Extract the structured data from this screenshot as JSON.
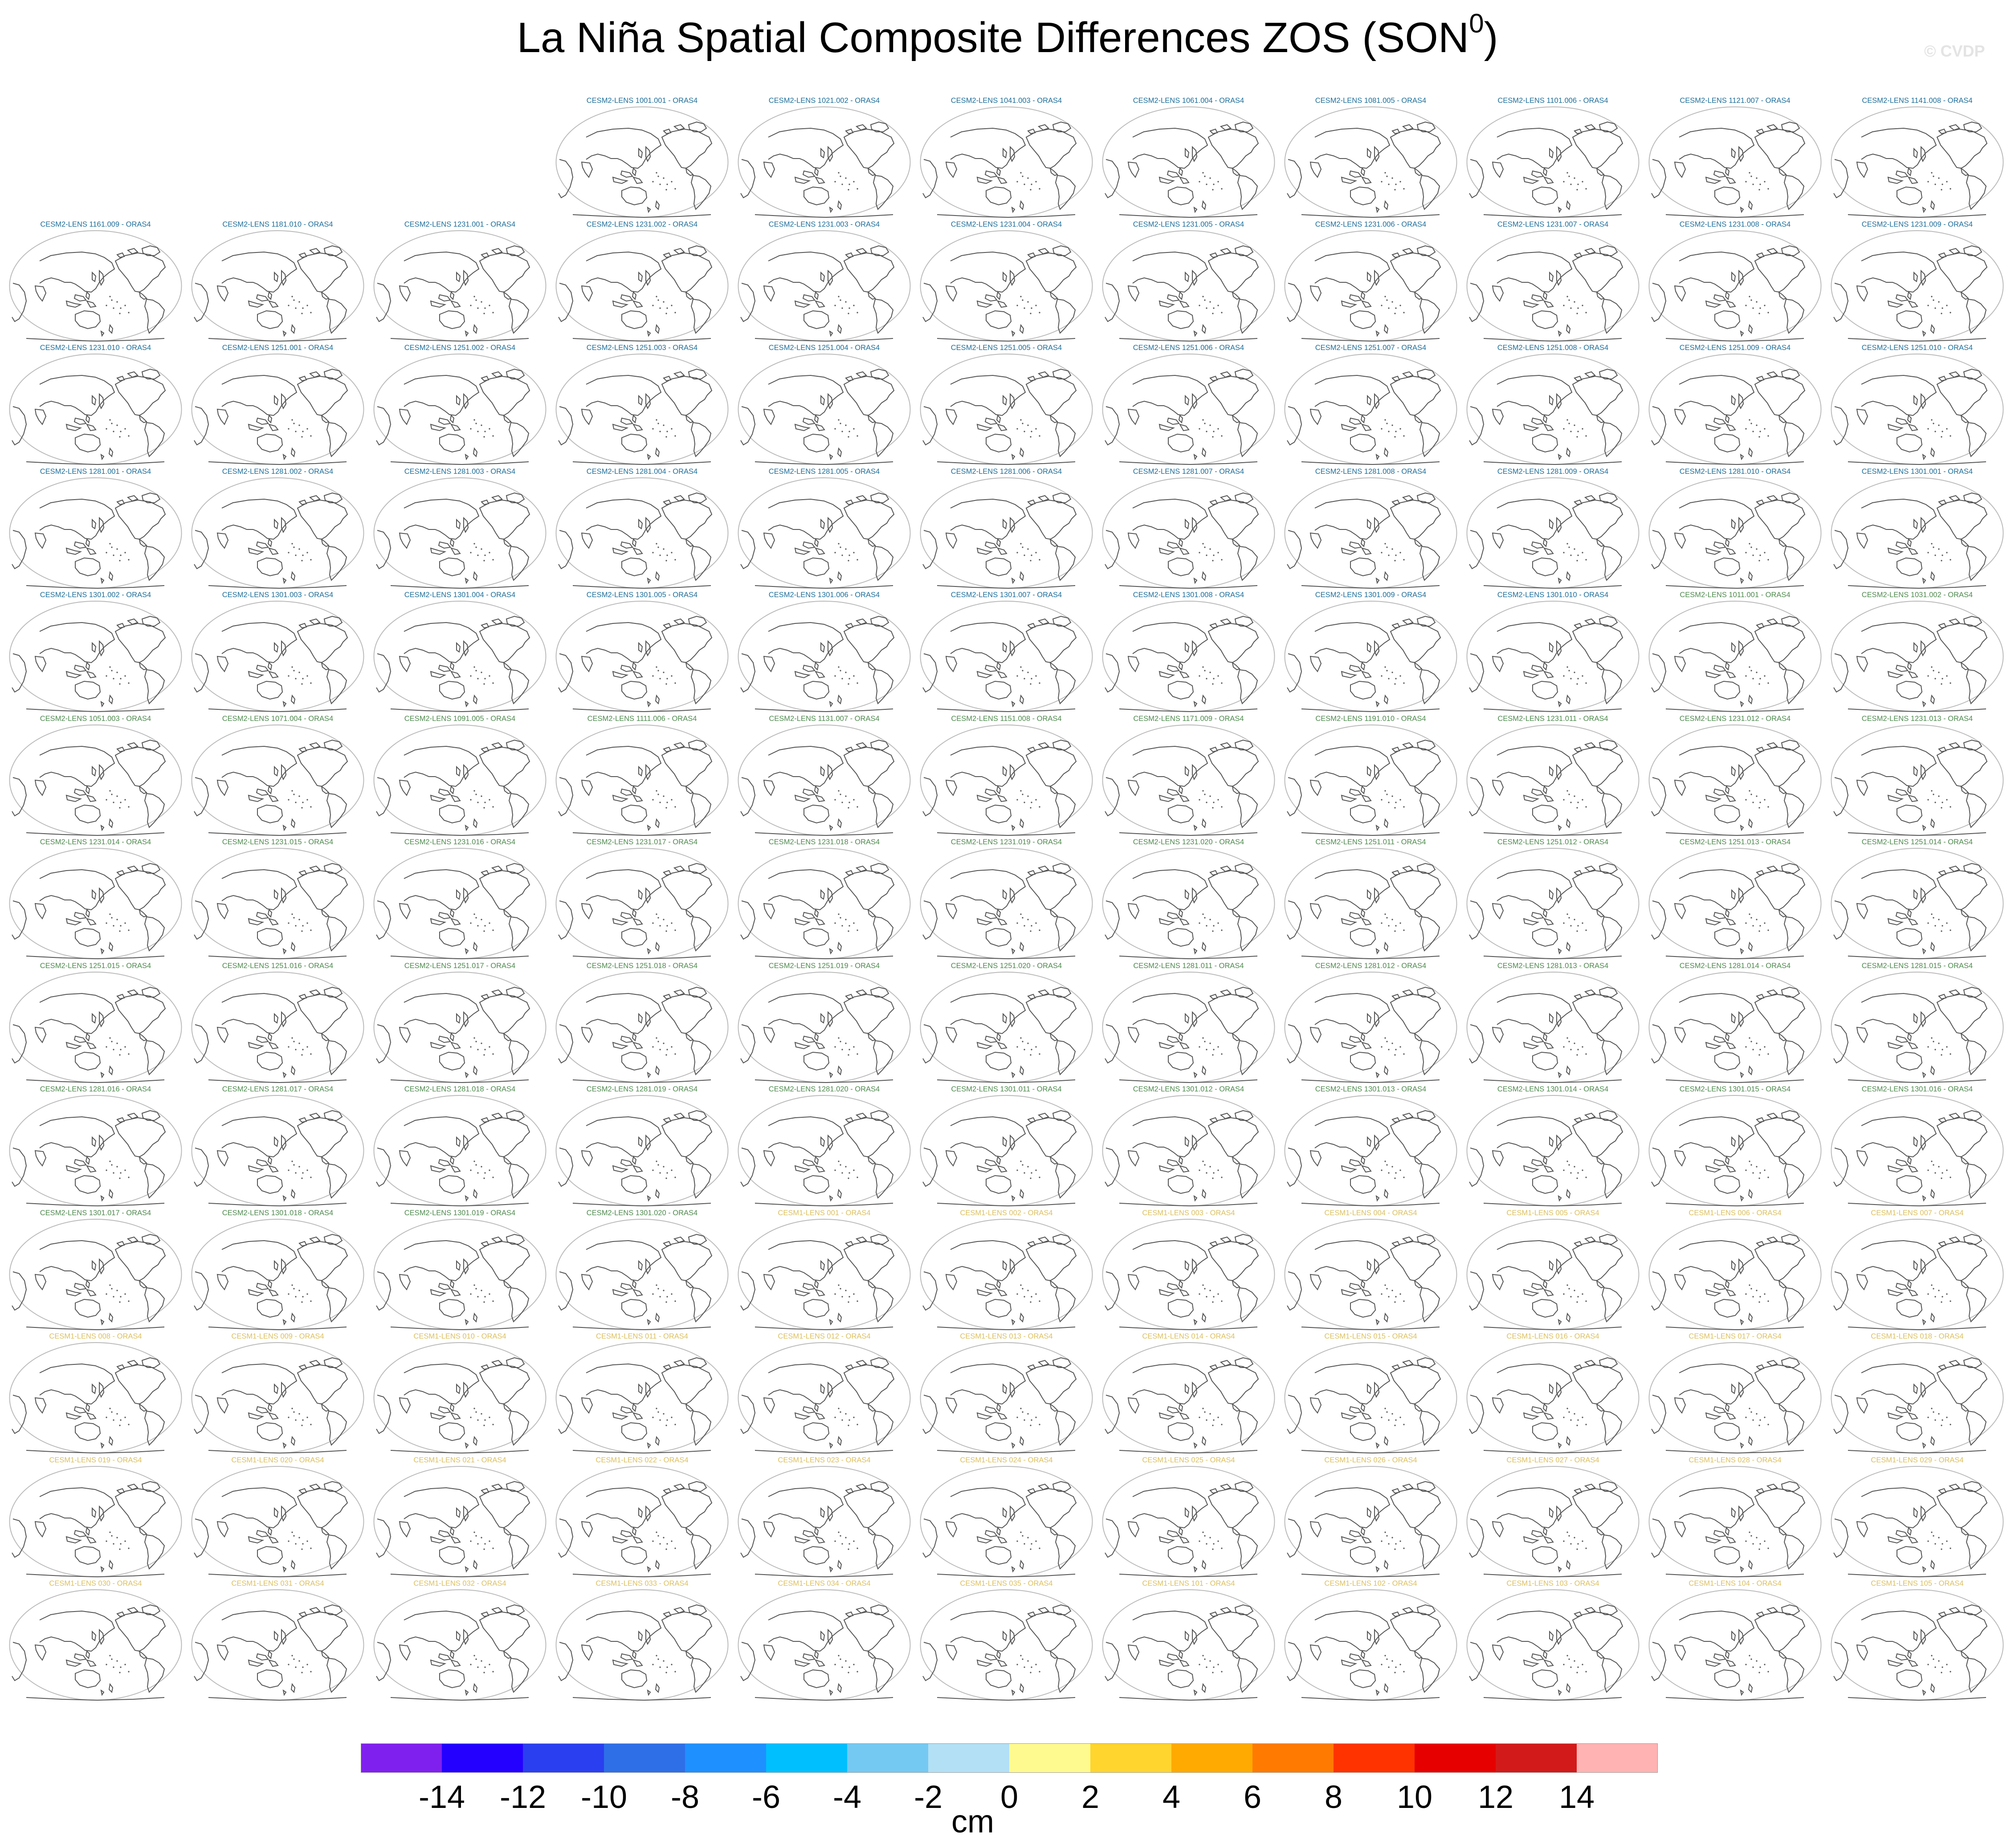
{
  "title": {
    "main": "La Niña Spatial Composite Differences ZOS (SON",
    "sup": "0",
    "close": ")"
  },
  "watermark": "© CVDP",
  "colors": {
    "cesm2_smbb": "#1f6f9a",
    "cesm2_macro": "#4f8a4f",
    "cesm1": "#dcc060",
    "coast": "#555555",
    "frame": "#bbbbbb"
  },
  "icons": {
    "panel": "world-map-icon"
  },
  "panels": [
    {
      "label": "CESM2-LENS 1001.001 - ORAS4",
      "group": "cesm2_smbb"
    },
    {
      "label": "CESM2-LENS 1021.002 - ORAS4",
      "group": "cesm2_smbb"
    },
    {
      "label": "CESM2-LENS 1041.003 - ORAS4",
      "group": "cesm2_smbb"
    },
    {
      "label": "CESM2-LENS 1061.004 - ORAS4",
      "group": "cesm2_smbb"
    },
    {
      "label": "CESM2-LENS 1081.005 - ORAS4",
      "group": "cesm2_smbb"
    },
    {
      "label": "CESM2-LENS 1101.006 - ORAS4",
      "group": "cesm2_smbb"
    },
    {
      "label": "CESM2-LENS 1121.007 - ORAS4",
      "group": "cesm2_smbb"
    },
    {
      "label": "CESM2-LENS 1141.008 - ORAS4",
      "group": "cesm2_smbb"
    },
    {
      "label": "CESM2-LENS 1161.009 - ORAS4",
      "group": "cesm2_smbb"
    },
    {
      "label": "CESM2-LENS 1181.010 - ORAS4",
      "group": "cesm2_smbb"
    },
    {
      "label": "CESM2-LENS 1231.001 - ORAS4",
      "group": "cesm2_smbb"
    },
    {
      "label": "CESM2-LENS 1231.002 - ORAS4",
      "group": "cesm2_smbb"
    },
    {
      "label": "CESM2-LENS 1231.003 - ORAS4",
      "group": "cesm2_smbb"
    },
    {
      "label": "CESM2-LENS 1231.004 - ORAS4",
      "group": "cesm2_smbb"
    },
    {
      "label": "CESM2-LENS 1231.005 - ORAS4",
      "group": "cesm2_smbb"
    },
    {
      "label": "CESM2-LENS 1231.006 - ORAS4",
      "group": "cesm2_smbb"
    },
    {
      "label": "CESM2-LENS 1231.007 - ORAS4",
      "group": "cesm2_smbb"
    },
    {
      "label": "CESM2-LENS 1231.008 - ORAS4",
      "group": "cesm2_smbb"
    },
    {
      "label": "CESM2-LENS 1231.009 - ORAS4",
      "group": "cesm2_smbb"
    },
    {
      "label": "CESM2-LENS 1231.010 - ORAS4",
      "group": "cesm2_smbb"
    },
    {
      "label": "CESM2-LENS 1251.001 - ORAS4",
      "group": "cesm2_smbb"
    },
    {
      "label": "CESM2-LENS 1251.002 - ORAS4",
      "group": "cesm2_smbb"
    },
    {
      "label": "CESM2-LENS 1251.003 - ORAS4",
      "group": "cesm2_smbb"
    },
    {
      "label": "CESM2-LENS 1251.004 - ORAS4",
      "group": "cesm2_smbb"
    },
    {
      "label": "CESM2-LENS 1251.005 - ORAS4",
      "group": "cesm2_smbb"
    },
    {
      "label": "CESM2-LENS 1251.006 - ORAS4",
      "group": "cesm2_smbb"
    },
    {
      "label": "CESM2-LENS 1251.007 - ORAS4",
      "group": "cesm2_smbb"
    },
    {
      "label": "CESM2-LENS 1251.008 - ORAS4",
      "group": "cesm2_smbb"
    },
    {
      "label": "CESM2-LENS 1251.009 - ORAS4",
      "group": "cesm2_smbb"
    },
    {
      "label": "CESM2-LENS 1251.010 - ORAS4",
      "group": "cesm2_smbb"
    },
    {
      "label": "CESM2-LENS 1281.001 - ORAS4",
      "group": "cesm2_smbb"
    },
    {
      "label": "CESM2-LENS 1281.002 - ORAS4",
      "group": "cesm2_smbb"
    },
    {
      "label": "CESM2-LENS 1281.003 - ORAS4",
      "group": "cesm2_smbb"
    },
    {
      "label": "CESM2-LENS 1281.004 - ORAS4",
      "group": "cesm2_smbb"
    },
    {
      "label": "CESM2-LENS 1281.005 - ORAS4",
      "group": "cesm2_smbb"
    },
    {
      "label": "CESM2-LENS 1281.006 - ORAS4",
      "group": "cesm2_smbb"
    },
    {
      "label": "CESM2-LENS 1281.007 - ORAS4",
      "group": "cesm2_smbb"
    },
    {
      "label": "CESM2-LENS 1281.008 - ORAS4",
      "group": "cesm2_smbb"
    },
    {
      "label": "CESM2-LENS 1281.009 - ORAS4",
      "group": "cesm2_smbb"
    },
    {
      "label": "CESM2-LENS 1281.010 - ORAS4",
      "group": "cesm2_smbb"
    },
    {
      "label": "CESM2-LENS 1301.001 - ORAS4",
      "group": "cesm2_smbb"
    },
    {
      "label": "CESM2-LENS 1301.002 - ORAS4",
      "group": "cesm2_smbb"
    },
    {
      "label": "CESM2-LENS 1301.003 - ORAS4",
      "group": "cesm2_smbb"
    },
    {
      "label": "CESM2-LENS 1301.004 - ORAS4",
      "group": "cesm2_smbb"
    },
    {
      "label": "CESM2-LENS 1301.005 - ORAS4",
      "group": "cesm2_smbb"
    },
    {
      "label": "CESM2-LENS 1301.006 - ORAS4",
      "group": "cesm2_smbb"
    },
    {
      "label": "CESM2-LENS 1301.007 - ORAS4",
      "group": "cesm2_smbb"
    },
    {
      "label": "CESM2-LENS 1301.008 - ORAS4",
      "group": "cesm2_smbb"
    },
    {
      "label": "CESM2-LENS 1301.009 - ORAS4",
      "group": "cesm2_smbb"
    },
    {
      "label": "CESM2-LENS 1301.010 - ORAS4",
      "group": "cesm2_smbb"
    },
    {
      "label": "CESM2-LENS 1011.001 - ORAS4",
      "group": "cesm2_macro"
    },
    {
      "label": "CESM2-LENS 1031.002 - ORAS4",
      "group": "cesm2_macro"
    },
    {
      "label": "CESM2-LENS 1051.003 - ORAS4",
      "group": "cesm2_macro"
    },
    {
      "label": "CESM2-LENS 1071.004 - ORAS4",
      "group": "cesm2_macro"
    },
    {
      "label": "CESM2-LENS 1091.005 - ORAS4",
      "group": "cesm2_macro"
    },
    {
      "label": "CESM2-LENS 1111.006 - ORAS4",
      "group": "cesm2_macro"
    },
    {
      "label": "CESM2-LENS 1131.007 - ORAS4",
      "group": "cesm2_macro"
    },
    {
      "label": "CESM2-LENS 1151.008 - ORAS4",
      "group": "cesm2_macro"
    },
    {
      "label": "CESM2-LENS 1171.009 - ORAS4",
      "group": "cesm2_macro"
    },
    {
      "label": "CESM2-LENS 1191.010 - ORAS4",
      "group": "cesm2_macro"
    },
    {
      "label": "CESM2-LENS 1231.011 - ORAS4",
      "group": "cesm2_macro"
    },
    {
      "label": "CESM2-LENS 1231.012 - ORAS4",
      "group": "cesm2_macro"
    },
    {
      "label": "CESM2-LENS 1231.013 - ORAS4",
      "group": "cesm2_macro"
    },
    {
      "label": "CESM2-LENS 1231.014 - ORAS4",
      "group": "cesm2_macro"
    },
    {
      "label": "CESM2-LENS 1231.015 - ORAS4",
      "group": "cesm2_macro"
    },
    {
      "label": "CESM2-LENS 1231.016 - ORAS4",
      "group": "cesm2_macro"
    },
    {
      "label": "CESM2-LENS 1231.017 - ORAS4",
      "group": "cesm2_macro"
    },
    {
      "label": "CESM2-LENS 1231.018 - ORAS4",
      "group": "cesm2_macro"
    },
    {
      "label": "CESM2-LENS 1231.019 - ORAS4",
      "group": "cesm2_macro"
    },
    {
      "label": "CESM2-LENS 1231.020 - ORAS4",
      "group": "cesm2_macro"
    },
    {
      "label": "CESM2-LENS 1251.011 - ORAS4",
      "group": "cesm2_macro"
    },
    {
      "label": "CESM2-LENS 1251.012 - ORAS4",
      "group": "cesm2_macro"
    },
    {
      "label": "CESM2-LENS 1251.013 - ORAS4",
      "group": "cesm2_macro"
    },
    {
      "label": "CESM2-LENS 1251.014 - ORAS4",
      "group": "cesm2_macro"
    },
    {
      "label": "CESM2-LENS 1251.015 - ORAS4",
      "group": "cesm2_macro"
    },
    {
      "label": "CESM2-LENS 1251.016 - ORAS4",
      "group": "cesm2_macro"
    },
    {
      "label": "CESM2-LENS 1251.017 - ORAS4",
      "group": "cesm2_macro"
    },
    {
      "label": "CESM2-LENS 1251.018 - ORAS4",
      "group": "cesm2_macro"
    },
    {
      "label": "CESM2-LENS 1251.019 - ORAS4",
      "group": "cesm2_macro"
    },
    {
      "label": "CESM2-LENS 1251.020 - ORAS4",
      "group": "cesm2_macro"
    },
    {
      "label": "CESM2-LENS 1281.011 - ORAS4",
      "group": "cesm2_macro"
    },
    {
      "label": "CESM2-LENS 1281.012 - ORAS4",
      "group": "cesm2_macro"
    },
    {
      "label": "CESM2-LENS 1281.013 - ORAS4",
      "group": "cesm2_macro"
    },
    {
      "label": "CESM2-LENS 1281.014 - ORAS4",
      "group": "cesm2_macro"
    },
    {
      "label": "CESM2-LENS 1281.015 - ORAS4",
      "group": "cesm2_macro"
    },
    {
      "label": "CESM2-LENS 1281.016 - ORAS4",
      "group": "cesm2_macro"
    },
    {
      "label": "CESM2-LENS 1281.017 - ORAS4",
      "group": "cesm2_macro"
    },
    {
      "label": "CESM2-LENS 1281.018 - ORAS4",
      "group": "cesm2_macro"
    },
    {
      "label": "CESM2-LENS 1281.019 - ORAS4",
      "group": "cesm2_macro"
    },
    {
      "label": "CESM2-LENS 1281.020 - ORAS4",
      "group": "cesm2_macro"
    },
    {
      "label": "CESM2-LENS 1301.011 - ORAS4",
      "group": "cesm2_macro"
    },
    {
      "label": "CESM2-LENS 1301.012 - ORAS4",
      "group": "cesm2_macro"
    },
    {
      "label": "CESM2-LENS 1301.013 - ORAS4",
      "group": "cesm2_macro"
    },
    {
      "label": "CESM2-LENS 1301.014 - ORAS4",
      "group": "cesm2_macro"
    },
    {
      "label": "CESM2-LENS 1301.015 - ORAS4",
      "group": "cesm2_macro"
    },
    {
      "label": "CESM2-LENS 1301.016 - ORAS4",
      "group": "cesm2_macro"
    },
    {
      "label": "CESM2-LENS 1301.017 - ORAS4",
      "group": "cesm2_macro"
    },
    {
      "label": "CESM2-LENS 1301.018 - ORAS4",
      "group": "cesm2_macro"
    },
    {
      "label": "CESM2-LENS 1301.019 - ORAS4",
      "group": "cesm2_macro"
    },
    {
      "label": "CESM2-LENS 1301.020 - ORAS4",
      "group": "cesm2_macro"
    },
    {
      "label": "CESM1-LENS 001 - ORAS4",
      "group": "cesm1"
    },
    {
      "label": "CESM1-LENS 002 - ORAS4",
      "group": "cesm1"
    },
    {
      "label": "CESM1-LENS 003 - ORAS4",
      "group": "cesm1"
    },
    {
      "label": "CESM1-LENS 004 - ORAS4",
      "group": "cesm1"
    },
    {
      "label": "CESM1-LENS 005 - ORAS4",
      "group": "cesm1"
    },
    {
      "label": "CESM1-LENS 006 - ORAS4",
      "group": "cesm1"
    },
    {
      "label": "CESM1-LENS 007 - ORAS4",
      "group": "cesm1"
    },
    {
      "label": "CESM1-LENS 008 - ORAS4",
      "group": "cesm1"
    },
    {
      "label": "CESM1-LENS 009 - ORAS4",
      "group": "cesm1"
    },
    {
      "label": "CESM1-LENS 010 - ORAS4",
      "group": "cesm1"
    },
    {
      "label": "CESM1-LENS 011 - ORAS4",
      "group": "cesm1"
    },
    {
      "label": "CESM1-LENS 012 - ORAS4",
      "group": "cesm1"
    },
    {
      "label": "CESM1-LENS 013 - ORAS4",
      "group": "cesm1"
    },
    {
      "label": "CESM1-LENS 014 - ORAS4",
      "group": "cesm1"
    },
    {
      "label": "CESM1-LENS 015 - ORAS4",
      "group": "cesm1"
    },
    {
      "label": "CESM1-LENS 016 - ORAS4",
      "group": "cesm1"
    },
    {
      "label": "CESM1-LENS 017 - ORAS4",
      "group": "cesm1"
    },
    {
      "label": "CESM1-LENS 018 - ORAS4",
      "group": "cesm1"
    },
    {
      "label": "CESM1-LENS 019 - ORAS4",
      "group": "cesm1"
    },
    {
      "label": "CESM1-LENS 020 - ORAS4",
      "group": "cesm1"
    },
    {
      "label": "CESM1-LENS 021 - ORAS4",
      "group": "cesm1"
    },
    {
      "label": "CESM1-LENS 022 - ORAS4",
      "group": "cesm1"
    },
    {
      "label": "CESM1-LENS 023 - ORAS4",
      "group": "cesm1"
    },
    {
      "label": "CESM1-LENS 024 - ORAS4",
      "group": "cesm1"
    },
    {
      "label": "CESM1-LENS 025 - ORAS4",
      "group": "cesm1"
    },
    {
      "label": "CESM1-LENS 026 - ORAS4",
      "group": "cesm1"
    },
    {
      "label": "CESM1-LENS 027 - ORAS4",
      "group": "cesm1"
    },
    {
      "label": "CESM1-LENS 028 - ORAS4",
      "group": "cesm1"
    },
    {
      "label": "CESM1-LENS 029 - ORAS4",
      "group": "cesm1"
    },
    {
      "label": "CESM1-LENS 030 - ORAS4",
      "group": "cesm1"
    },
    {
      "label": "CESM1-LENS 031 - ORAS4",
      "group": "cesm1"
    },
    {
      "label": "CESM1-LENS 032 - ORAS4",
      "group": "cesm1"
    },
    {
      "label": "CESM1-LENS 033 - ORAS4",
      "group": "cesm1"
    },
    {
      "label": "CESM1-LENS 034 - ORAS4",
      "group": "cesm1"
    },
    {
      "label": "CESM1-LENS 035 - ORAS4",
      "group": "cesm1"
    },
    {
      "label": "CESM1-LENS 101 - ORAS4",
      "group": "cesm1"
    },
    {
      "label": "CESM1-LENS 102 - ORAS4",
      "group": "cesm1"
    },
    {
      "label": "CESM1-LENS 103 - ORAS4",
      "group": "cesm1"
    },
    {
      "label": "CESM1-LENS 104 - ORAS4",
      "group": "cesm1"
    },
    {
      "label": "CESM1-LENS 105 - ORAS4",
      "group": "cesm1"
    }
  ],
  "colorbar": {
    "unit": "cm",
    "ticks": [
      "-14",
      "-12",
      "-10",
      "-8",
      "-6",
      "-4",
      "-2",
      "0",
      "2",
      "4",
      "6",
      "8",
      "10",
      "12",
      "14"
    ],
    "colors": [
      "#8020ee",
      "#2300ff",
      "#2a3ff0",
      "#2e6fe8",
      "#1e90ff",
      "#00bfff",
      "#74c9f3",
      "#b3e0f5",
      "#fffa8f",
      "#ffd52e",
      "#ffaa00",
      "#ff7a00",
      "#ff3300",
      "#e60000",
      "#d21a1a",
      "#ffb3b3"
    ]
  }
}
